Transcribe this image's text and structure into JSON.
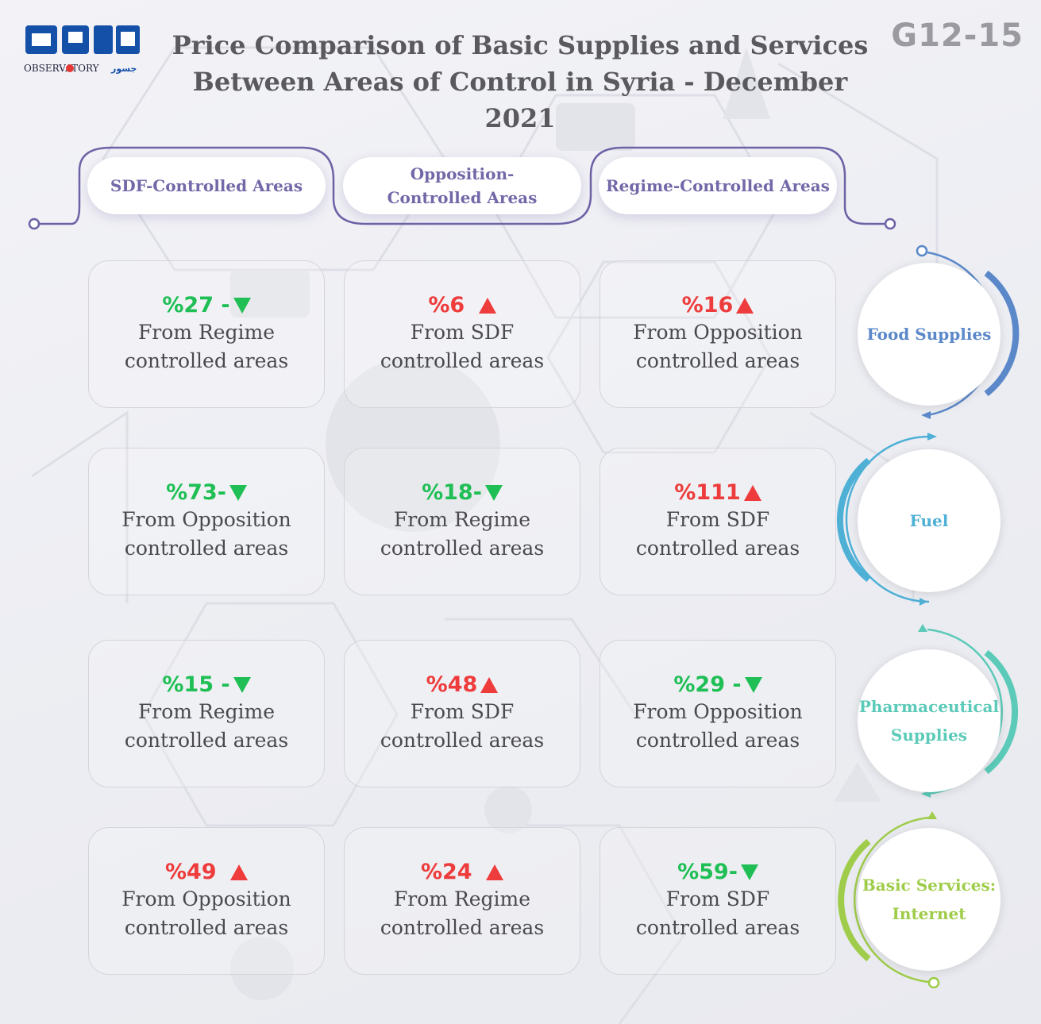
{
  "header": {
    "title": "Price Comparison of Basic Supplies and Services Between Areas of Control in Syria - December 2021",
    "code": "G12-15",
    "logo_text": "OBSERVATORY",
    "logo_subtext": "جسور"
  },
  "columns": [
    {
      "label": "SDF-Controlled Areas"
    },
    {
      "label": "Opposition-Controlled Areas"
    },
    {
      "label": "Regime-Controlled Areas"
    }
  ],
  "rows": [
    {
      "label": "Food Supplies",
      "color": "#5b88c9",
      "cells": [
        {
          "value": "%27 -",
          "direction": "down",
          "line1": "From Regime",
          "line2": "controlled areas"
        },
        {
          "value": "%6",
          "direction": "up",
          "line1": "From SDF",
          "line2": "controlled areas"
        },
        {
          "value": "%16",
          "direction": "up",
          "line1": "From Opposition",
          "line2": "controlled areas"
        }
      ]
    },
    {
      "label": "Fuel",
      "color": "#4fb0d6",
      "cells": [
        {
          "value": "%73-",
          "direction": "down",
          "line1": "From Opposition",
          "line2": "controlled areas"
        },
        {
          "value": "%18-",
          "direction": "down",
          "line1": "From Regime",
          "line2": "controlled areas"
        },
        {
          "value": "%111",
          "direction": "up",
          "line1": "From SDF",
          "line2": "controlled areas"
        }
      ]
    },
    {
      "label": "Pharmaceutical Supplies",
      "color": "#5ccab8",
      "cells": [
        {
          "value": "%15 -",
          "direction": "down",
          "line1": "From Regime",
          "line2": "controlled areas"
        },
        {
          "value": "%48",
          "direction": "up",
          "line1": "From SDF",
          "line2": "controlled areas"
        },
        {
          "value": "%29 -",
          "direction": "down",
          "line1": "From Opposition",
          "line2": "controlled areas"
        }
      ]
    },
    {
      "label": "Basic Services: Internet",
      "color": "#9fcc4a",
      "cells": [
        {
          "value": "%49",
          "direction": "up",
          "line1": "From Opposition",
          "line2": "controlled areas"
        },
        {
          "value": "%24",
          "direction": "up",
          "line1": "From Regime",
          "line2": "controlled areas"
        },
        {
          "value": "%59-",
          "direction": "down",
          "line1": "From SDF",
          "line2": "controlled areas"
        }
      ]
    }
  ],
  "colors": {
    "up": "#ee3b3b",
    "down": "#1fbf55",
    "header_text": "#7268a8",
    "connector": "#6e62a6",
    "logo_blue": "#1550a8",
    "logo_red": "#e53935"
  }
}
